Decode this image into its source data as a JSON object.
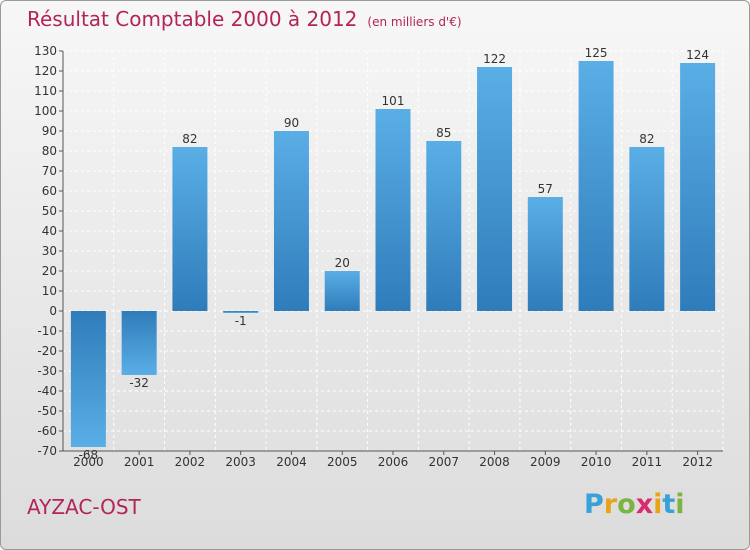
{
  "header": {
    "title": "Résultat Comptable 2000 à 2012",
    "subtitle": "(en milliers d'€)"
  },
  "footer": {
    "location": "AYZAC-OST",
    "logo_letters": [
      "P",
      "r",
      "o",
      "x",
      "i",
      "t",
      "i"
    ],
    "logo_colors": [
      "#3aa0d8",
      "#e8a317",
      "#7cb342",
      "#d92b6e",
      "#e8a317",
      "#3aa0d8",
      "#7cb342"
    ]
  },
  "colors": {
    "title": "#b3245a",
    "bar_light": "#5aaee6",
    "bar_dark": "#2f7cba"
  },
  "chart_data": {
    "type": "bar",
    "categories": [
      "2000",
      "2001",
      "2002",
      "2003",
      "2004",
      "2005",
      "2006",
      "2007",
      "2008",
      "2009",
      "2010",
      "2011",
      "2012"
    ],
    "values": [
      -68,
      -32,
      82,
      -1,
      90,
      20,
      101,
      85,
      122,
      57,
      125,
      82,
      124
    ],
    "data_labels": [
      "-68",
      "-32",
      "82",
      "-1",
      "90",
      "20",
      "101",
      "85",
      "122",
      "57",
      "125",
      "82",
      "124"
    ],
    "ylim": [
      -70,
      130
    ],
    "yticks": [
      -70,
      -60,
      -50,
      -40,
      -30,
      -20,
      -10,
      0,
      10,
      20,
      30,
      40,
      50,
      60,
      70,
      80,
      90,
      100,
      110,
      120,
      130
    ],
    "grid": true,
    "xlabel": "",
    "ylabel": ""
  }
}
